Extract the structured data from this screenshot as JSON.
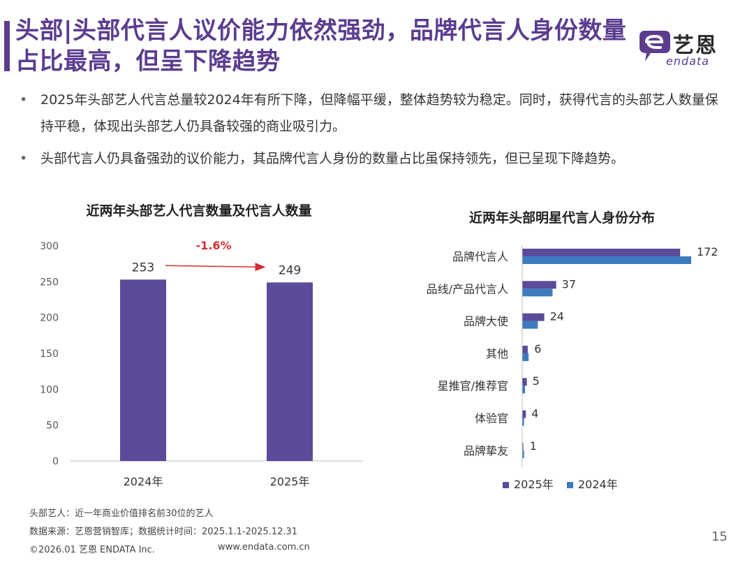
{
  "header": {
    "title_line1": "头部|头部代言人议价能力依然强劲，品牌代言人身份数量",
    "title_line2": "占比最高，但呈下降趋势"
  },
  "logo": {
    "name": "艺恩",
    "sub": "endata",
    "brand_color": "#5b3c8f"
  },
  "bullets": [
    {
      "marker": "•",
      "text": "2025年头部艺人代言总量较2024年有所下降，但降幅平缓，整体趋势较为稳定。同时，获得代言的头部艺人数量保持平稳，体现出头部艺人仍具备较强的商业吸引力。"
    },
    {
      "marker": "•",
      "text": "头部代言人仍具备强劲的议价能力，其品牌代言人身份的数量占比虽保持领先，但已呈现下降趋势。"
    }
  ],
  "chart_data": [
    {
      "type": "bar",
      "title": "近两年头部艺人代言数量及代言人数量",
      "categories": [
        "2024年",
        "2025年"
      ],
      "values": [
        253,
        249
      ],
      "ylim": [
        0,
        300
      ],
      "yticks": [
        0,
        50,
        100,
        150,
        200,
        250,
        300
      ],
      "annotation": "-1.6%",
      "bar_color": "#5b4b9a",
      "annotation_color": "#d32f2f"
    },
    {
      "type": "bar",
      "orientation": "horizontal",
      "title": "近两年头部明星代言人身份分布",
      "categories": [
        "品牌代言人",
        "品线/产品代言人",
        "品牌大使",
        "其他",
        "星推官/推荐官",
        "体验官",
        "品牌挚友"
      ],
      "series": [
        {
          "name": "2025年",
          "values": [
            172,
            37,
            24,
            6,
            5,
            4,
            1
          ],
          "color": "#5b4b9a"
        },
        {
          "name": "2024年",
          "values": [
            184,
            33,
            17,
            7,
            3,
            2,
            2
          ],
          "color": "#3d7bbf"
        }
      ],
      "data_labels": [
        "172",
        "37",
        "24",
        "6",
        "5",
        "4",
        "1"
      ],
      "legend": "bottom"
    }
  ],
  "footer": {
    "note": "头部艺人：近一年商业价值排名前30位的艺人",
    "source": "数据来源：艺恩营销智库；数据统计时间：2025.1.1-2025.12.31",
    "copyright": "©2026.01 艺恩 ENDATA Inc.",
    "url": "www.endata.com.cn",
    "page_number": "15"
  }
}
